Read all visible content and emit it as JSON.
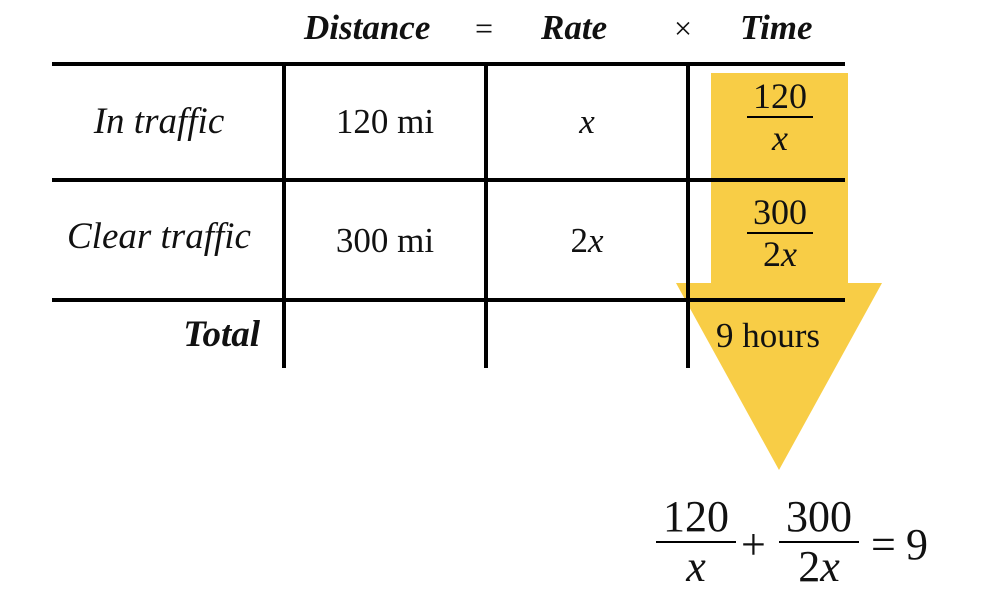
{
  "header": {
    "distance": "Distance",
    "equals": "=",
    "rate": "Rate",
    "times": "×",
    "time": "Time"
  },
  "rows": [
    {
      "label": "In traffic",
      "distance": "120 mi",
      "rate": "x",
      "time_num": "120",
      "time_den": "x"
    },
    {
      "label": "Clear traffic",
      "distance": "300 mi",
      "rate_coef": "2",
      "rate_var": "x",
      "time_num": "300",
      "time_den_coef": "2",
      "time_den_var": "x"
    }
  ],
  "total": {
    "label": "Total",
    "time": "9 hours"
  },
  "equation": {
    "frac1_num": "120",
    "frac1_den": "x",
    "plus": "+",
    "frac2_num": "300",
    "frac2_den_coef": "2",
    "frac2_den_var": "x",
    "equals": "=",
    "rhs": "9"
  },
  "colors": {
    "highlight": "#F9D45C",
    "arrow": "#F7C936",
    "line": "#000000"
  }
}
